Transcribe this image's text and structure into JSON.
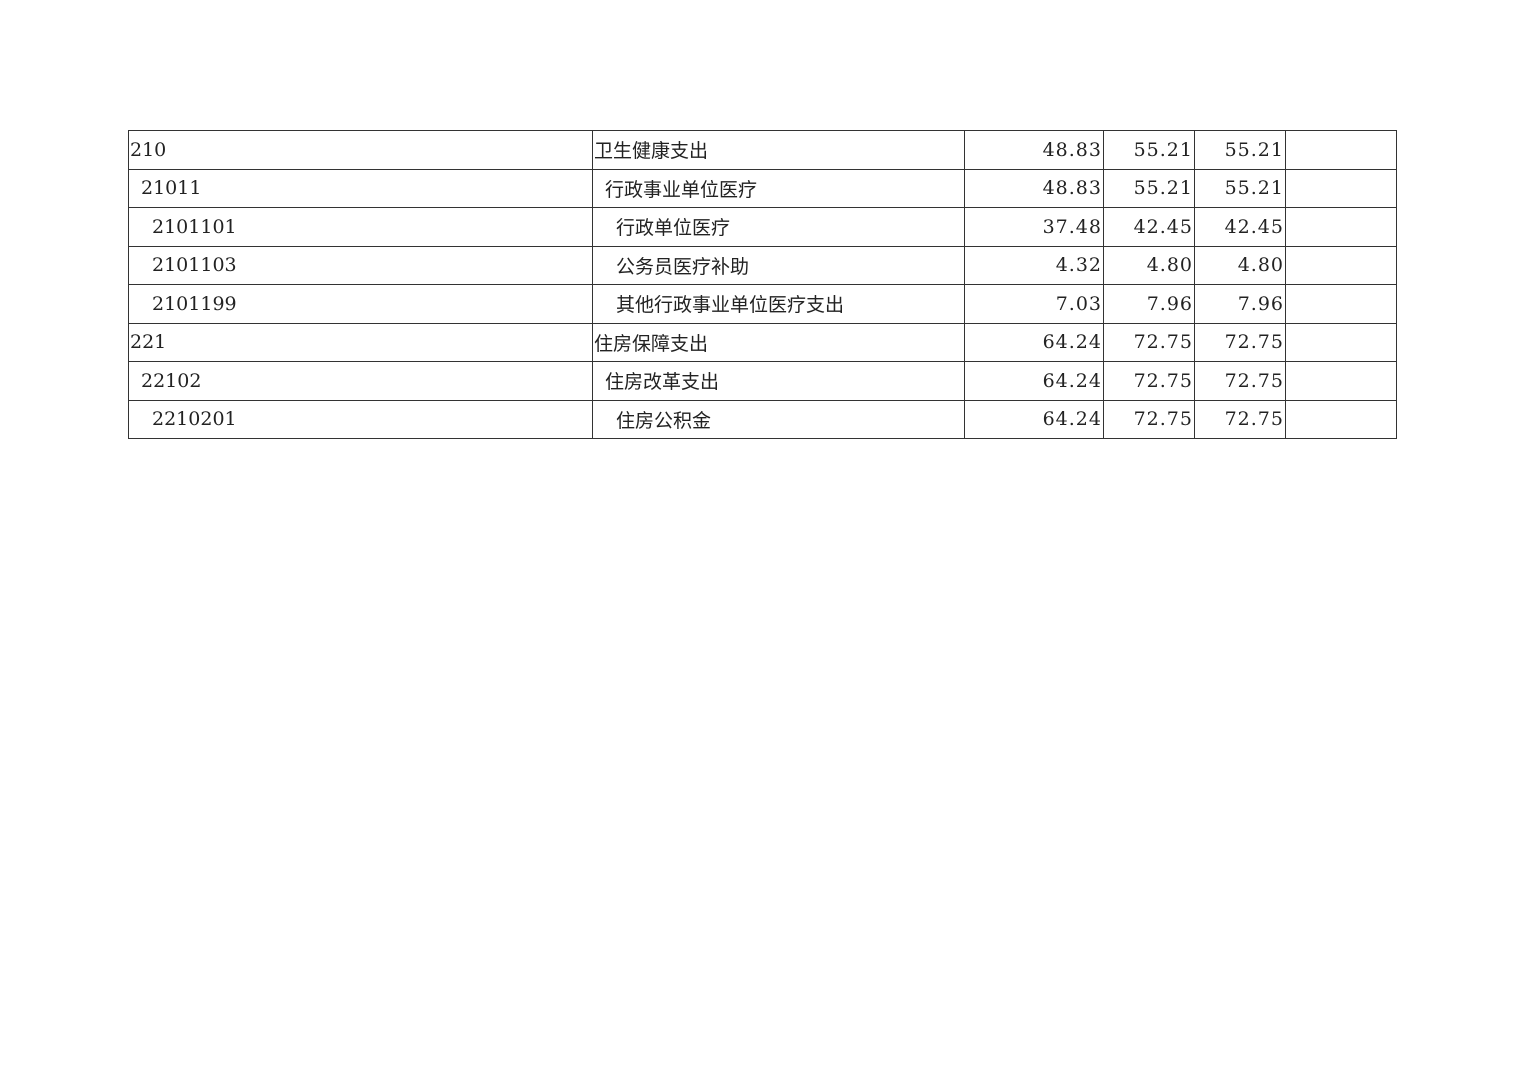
{
  "table": {
    "rows": [
      {
        "code": "210",
        "name": "卫生健康支出",
        "level": 0,
        "v1": "48.83",
        "v2": "55.21",
        "v3": "55.21",
        "v4": ""
      },
      {
        "code": "21011",
        "name": "行政事业单位医疗",
        "level": 1,
        "v1": "48.83",
        "v2": "55.21",
        "v3": "55.21",
        "v4": ""
      },
      {
        "code": "2101101",
        "name": "行政单位医疗",
        "level": 2,
        "v1": "37.48",
        "v2": "42.45",
        "v3": "42.45",
        "v4": ""
      },
      {
        "code": "2101103",
        "name": "公务员医疗补助",
        "level": 2,
        "v1": "4.32",
        "v2": "4.80",
        "v3": "4.80",
        "v4": ""
      },
      {
        "code": "2101199",
        "name": "其他行政事业单位医疗支出",
        "level": 2,
        "v1": "7.03",
        "v2": "7.96",
        "v3": "7.96",
        "v4": ""
      },
      {
        "code": "221",
        "name": "住房保障支出",
        "level": 0,
        "v1": "64.24",
        "v2": "72.75",
        "v3": "72.75",
        "v4": ""
      },
      {
        "code": "22102",
        "name": "住房改革支出",
        "level": 1,
        "v1": "64.24",
        "v2": "72.75",
        "v3": "72.75",
        "v4": ""
      },
      {
        "code": "2210201",
        "name": "住房公积金",
        "level": 2,
        "v1": "64.24",
        "v2": "72.75",
        "v3": "72.75",
        "v4": ""
      }
    ]
  }
}
